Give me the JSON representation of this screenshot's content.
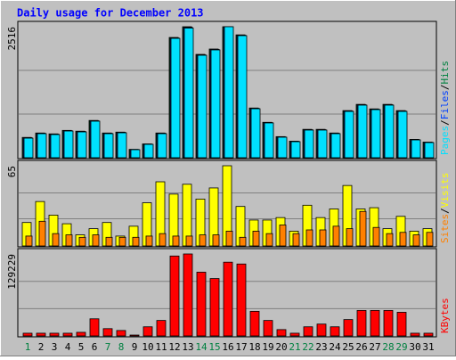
{
  "chart_data": {
    "type": "bar",
    "title": "Daily usage for December 2013",
    "categories": [
      "1",
      "2",
      "3",
      "4",
      "5",
      "6",
      "7",
      "8",
      "9",
      "10",
      "11",
      "12",
      "13",
      "14",
      "15",
      "16",
      "17",
      "18",
      "19",
      "20",
      "21",
      "22",
      "23",
      "24",
      "25",
      "26",
      "27",
      "28",
      "29",
      "30",
      "31"
    ],
    "category_colors": [
      "#008040",
      "#000000",
      "#000000",
      "#000000",
      "#000000",
      "#000000",
      "#008040",
      "#008040",
      "#000000",
      "#000000",
      "#000000",
      "#000000",
      "#000000",
      "#008040",
      "#008040",
      "#000000",
      "#000000",
      "#000000",
      "#000000",
      "#000000",
      "#008040",
      "#008040",
      "#000000",
      "#000000",
      "#000000",
      "#000000",
      "#000000",
      "#008040",
      "#008040",
      "#000000",
      "#000000"
    ],
    "legend_separator": "/",
    "panels": [
      {
        "ylim": [
          0,
          2516
        ],
        "yticks": [
          2516
        ],
        "grid_lines": [
          839,
          1677
        ],
        "series": [
          {
            "name": "Hits",
            "color": "#008040",
            "values": [
              390,
              475,
              458,
              525,
              510,
              716,
              475,
              492,
              160,
              265,
              475,
              2310,
              2516,
              1985,
              2088,
              2516,
              2360,
              955,
              680,
              405,
              318,
              545,
              545,
              475,
              905,
              1025,
              938,
              1025,
              905,
              352,
              300
            ]
          },
          {
            "name": "Files",
            "color": "#0040FF",
            "values": [
              385,
              470,
              452,
              520,
              505,
              710,
              470,
              487,
              158,
              262,
              470,
              2300,
              2505,
              1975,
              2080,
              2516,
              2352,
              948,
              675,
              400,
              314,
              538,
              538,
              470,
              898,
              1018,
              930,
              1018,
              898,
              348,
              296
            ]
          },
          {
            "name": "Pages",
            "color": "#00E0FF",
            "values": [
              376,
              462,
              445,
              513,
              496,
              702,
              462,
              479,
              154,
              257,
              462,
              2293,
              2490,
              1968,
              2071,
              2516,
              2345,
              941,
              668,
              394,
              308,
              531,
              531,
              462,
              890,
              1010,
              924,
              1010,
              890,
              342,
              291
            ]
          }
        ]
      },
      {
        "ylim": [
          0,
          65
        ],
        "yticks": [
          65
        ],
        "grid_lines": [
          22,
          43
        ],
        "series": [
          {
            "name": "Visits",
            "color": "#FFFF00",
            "values": [
              19,
              36,
              25,
              18,
              9,
              14,
              19,
              8,
              16,
              35,
              52,
              42,
              50,
              38,
              47,
              65,
              32,
              21,
              21,
              23,
              12,
              33,
              23,
              30,
              49,
              30,
              31,
              14,
              24,
              12,
              14
            ]
          },
          {
            "name": "Sites",
            "color": "#FF8000",
            "values": [
              8,
              20,
              10,
              9,
              7,
              9,
              7,
              7,
              7,
              8,
              10,
              8,
              8,
              9,
              9,
              12,
              7,
              12,
              10,
              17,
              10,
              13,
              13,
              16,
              14,
              28,
              15,
              10,
              11,
              9,
              11
            ]
          }
        ]
      },
      {
        "ylim": [
          0,
          129229
        ],
        "yticks": [
          129229
        ],
        "grid_lines": [
          43000,
          86000
        ],
        "series": [
          {
            "name": "KBytes",
            "color": "#FF0000",
            "values": [
              4300,
              4300,
              4300,
              4300,
              5700,
              27000,
              11500,
              8600,
              1400,
              14400,
              24400,
              126000,
              129229,
              100500,
              90500,
              116300,
              113400,
              38800,
              24400,
              10000,
              4300,
              14400,
              18700,
              14400,
              25800,
              40200,
              40200,
              40200,
              37300,
              4300,
              4300
            ]
          }
        ]
      }
    ]
  }
}
